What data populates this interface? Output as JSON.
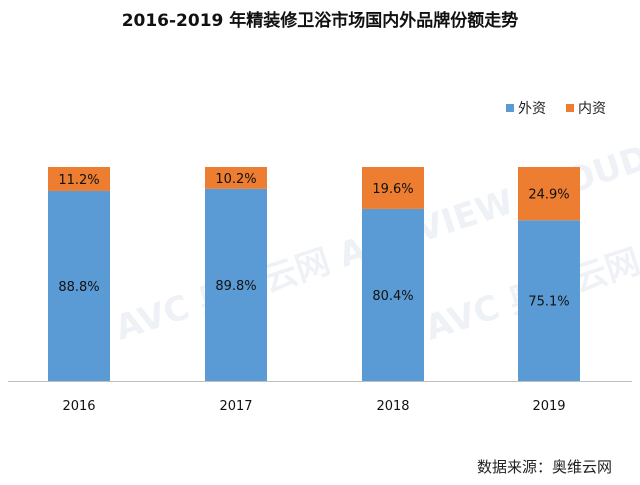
{
  "title": "2016-2019 年精装修卫浴市场国内外品牌份额走势",
  "source": "数据来源：奥维云网",
  "watermark": "AVC 奥维云网 ALL VIEW CLOUD",
  "chart_data": {
    "type": "bar",
    "stacked": true,
    "categories": [
      "2016",
      "2017",
      "2018",
      "2019"
    ],
    "series": [
      {
        "name": "外资",
        "values": [
          88.8,
          89.8,
          80.4,
          75.1
        ],
        "labels": [
          "88.8%",
          "89.8%",
          "80.4%",
          "75.1%"
        ],
        "color": "#5B9BD5"
      },
      {
        "name": "内资",
        "values": [
          11.2,
          10.2,
          19.6,
          24.9
        ],
        "labels": [
          "11.2%",
          "10.2%",
          "19.6%",
          "24.9%"
        ],
        "color": "#ED7D31"
      }
    ],
    "ylim": [
      0,
      100
    ],
    "grid": false,
    "legend_position": "top-right",
    "title": "2016-2019 年精装修卫浴市场国内外品牌份额走势",
    "xlabel": "",
    "ylabel": ""
  }
}
